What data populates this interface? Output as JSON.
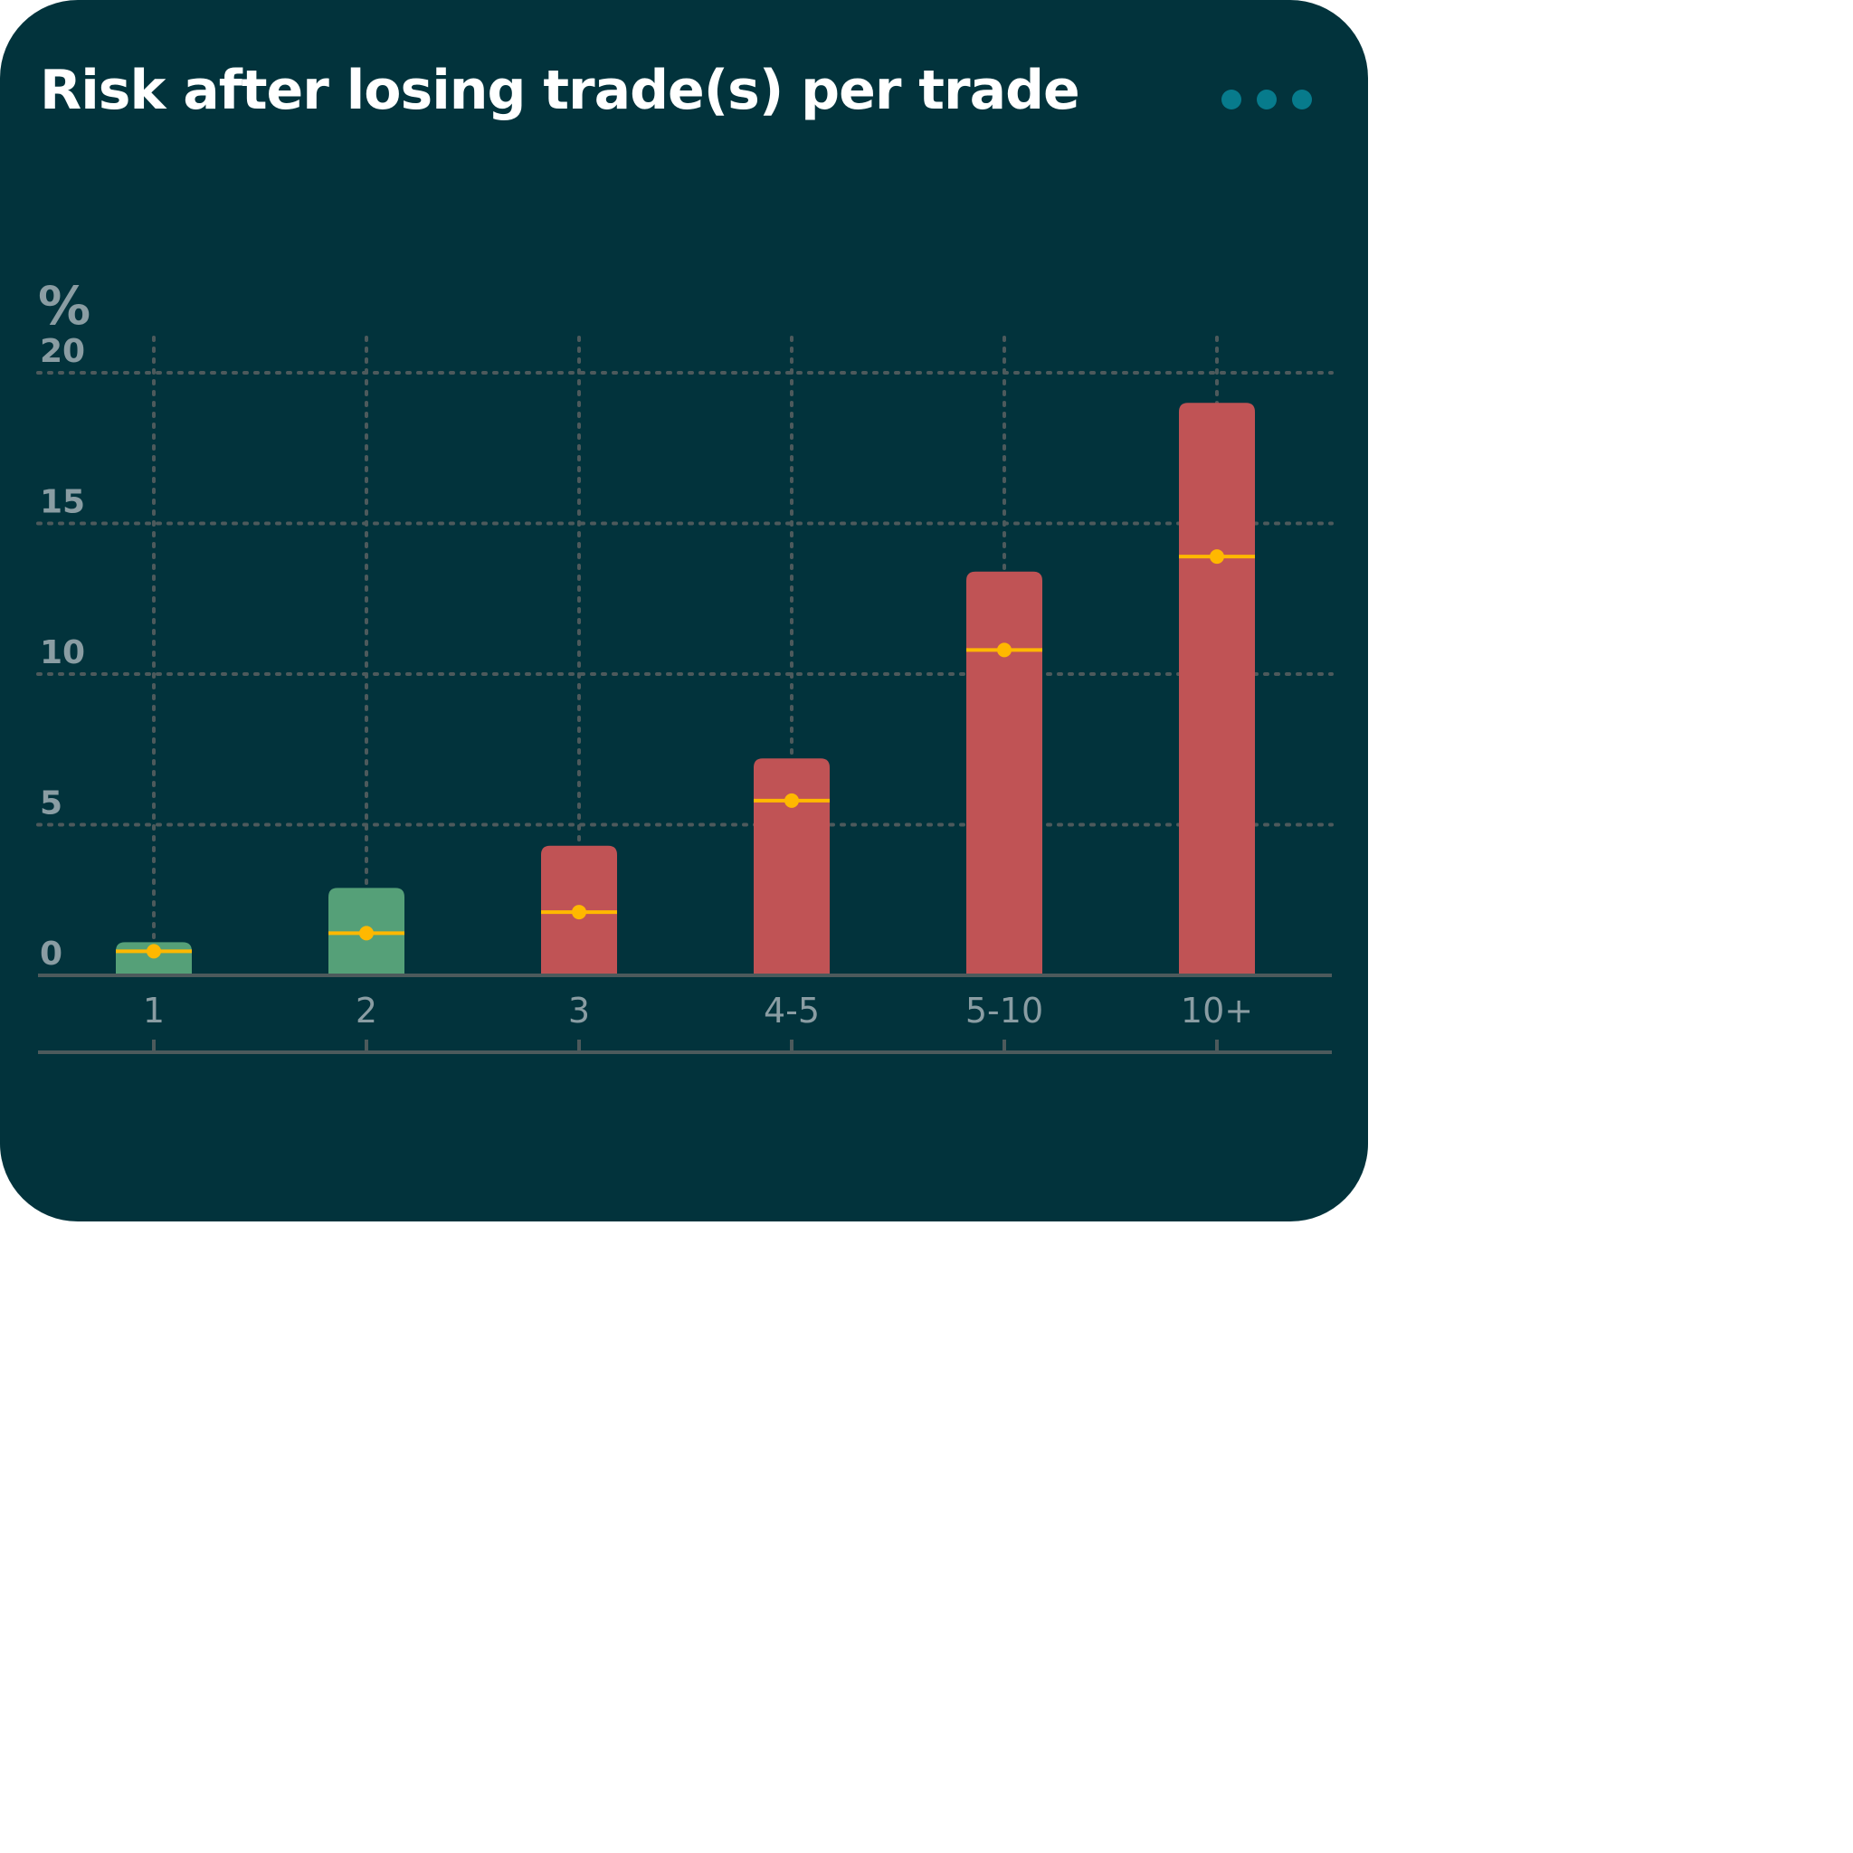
{
  "card": {
    "title": "Risk after losing trade(s) per trade",
    "more_icon": "more-horizontal-icon"
  },
  "colors": {
    "background": "#02333c",
    "title": "#ffffff",
    "more_dots": "#077b8c",
    "grid": "#4d5a5c",
    "axis": "#4d5a5c",
    "label": "#8a9da3",
    "bar_low": "#55a078",
    "bar_high": "#c05355",
    "marker": "#ffb800"
  },
  "chart_data": {
    "type": "bar",
    "title": "Risk after losing trade(s) per trade",
    "ylabel": "%",
    "xlabel": "",
    "categories": [
      "1",
      "2",
      "3",
      "4-5",
      "5-10",
      "10+"
    ],
    "series": [
      {
        "values": [
          1.1,
          2.9,
          4.3,
          7.2,
          13.4,
          19.0
        ]
      },
      {
        "values": [
          0.8,
          1.4,
          2.1,
          5.8,
          10.8,
          13.9
        ]
      }
    ],
    "bar_colors": [
      "#55a078",
      "#55a078",
      "#c05355",
      "#c05355",
      "#c05355",
      "#c05355"
    ],
    "ylim": [
      0,
      20
    ],
    "yticks": [
      "0",
      "5",
      "10",
      "15",
      "20"
    ],
    "grid": true
  }
}
